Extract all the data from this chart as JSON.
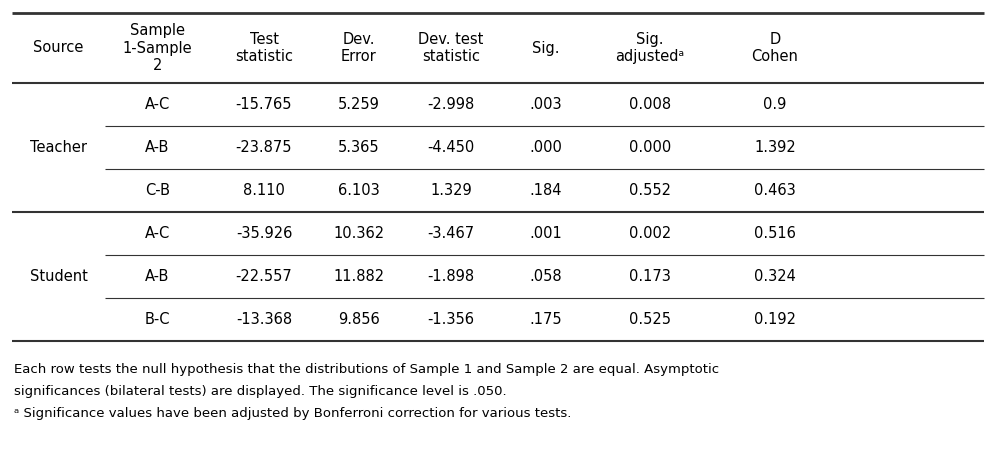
{
  "col_headers": [
    "Source",
    "Sample\n1-Sample\n2",
    "Test\nstatistic",
    "Dev.\nError",
    "Dev. test\nstatistic",
    "Sig.",
    "Sig.\nadjustedᵃ",
    "D\nCohen"
  ],
  "rows": [
    [
      "Teacher",
      "A-C",
      "-15.765",
      "5.259",
      "-2.998",
      ".003",
      "0.008",
      "0.9"
    ],
    [
      "Teacher",
      "A-B",
      "-23.875",
      "5.365",
      "-4.450",
      ".000",
      "0.000",
      "1.392"
    ],
    [
      "Teacher",
      "C-B",
      "8.110",
      "6.103",
      "1.329",
      ".184",
      "0.552",
      "0.463"
    ],
    [
      "Student",
      "A-C",
      "-35.926",
      "10.362",
      "-3.467",
      ".001",
      "0.002",
      "0.516"
    ],
    [
      "Student",
      "A-B",
      "-22.557",
      "11.882",
      "-1.898",
      ".058",
      "0.173",
      "0.324"
    ],
    [
      "Student",
      "B-C",
      "-13.368",
      "9.856",
      "-1.356",
      ".175",
      "0.525",
      "0.192"
    ]
  ],
  "footnote1": "Each row tests the null hypothesis that the distributions of Sample 1 and Sample 2 are equal. Asymptotic",
  "footnote2": "significances (bilateral tests) are displayed. The significance level is .050.",
  "footnote3": "ᵃ Significance values have been adjusted by Bonferroni correction for various tests.",
  "bg_color": "#ffffff",
  "text_color": "#000000",
  "line_color": "#333333",
  "font_size": 10.5,
  "header_font_size": 10.5,
  "footnote_font_size": 9.5
}
